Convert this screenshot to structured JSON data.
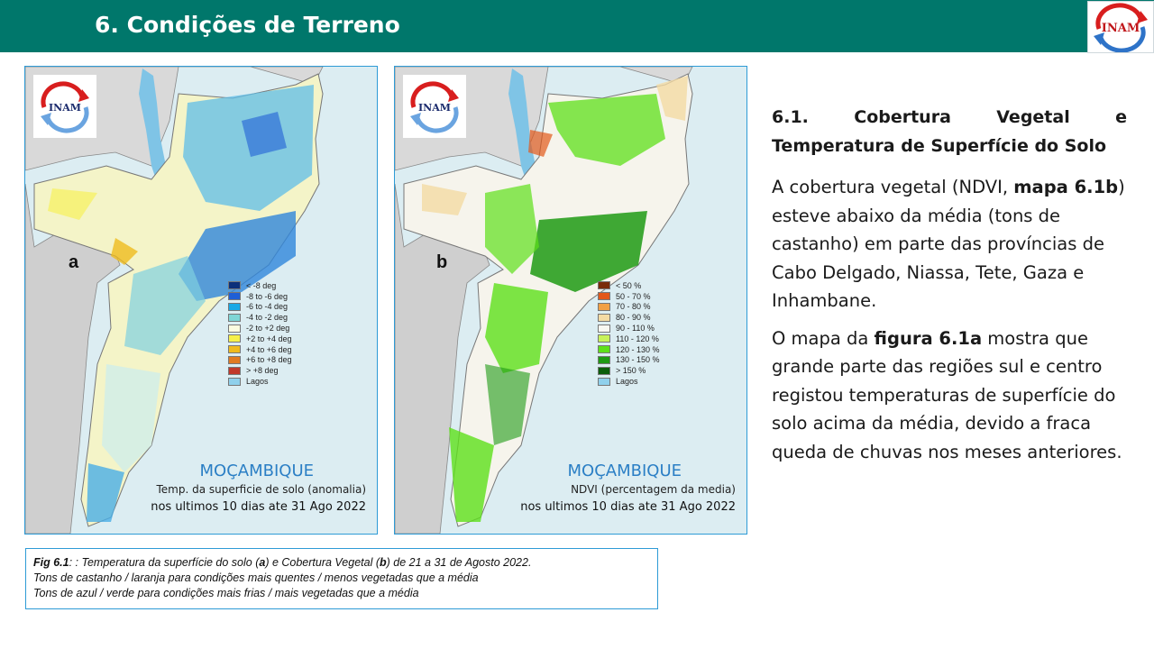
{
  "header": {
    "title": "6. Condições de Terreno",
    "logo_text": "INAM",
    "colors": {
      "bar": "#00776b"
    }
  },
  "maps": [
    {
      "letter": "a",
      "logo_text": "INAM",
      "country": "MOÇAMBIQUE",
      "subtitle": "Temp. da superficie de solo (anomalia)",
      "period": "nos ultimos 10 dias ate 31 Ago 2022",
      "legend": [
        {
          "label": "< -8 deg",
          "color": "#0b2f7a"
        },
        {
          "label": "-8 to -6 deg",
          "color": "#1f5fd6"
        },
        {
          "label": "-6 to -4 deg",
          "color": "#19a9e6"
        },
        {
          "label": "-4 to -2 deg",
          "color": "#7fd6d6"
        },
        {
          "label": "-2 to +2 deg",
          "color": "#fbfbe0"
        },
        {
          "label": "+2 to +4 deg",
          "color": "#f6f04a"
        },
        {
          "label": "+4 to +6 deg",
          "color": "#efbb1e"
        },
        {
          "label": "+6 to +8 deg",
          "color": "#e07a22"
        },
        {
          "label": "> +8 deg",
          "color": "#c1392b"
        },
        {
          "label": "Lagos",
          "color": "#8fd0ec"
        }
      ]
    },
    {
      "letter": "b",
      "logo_text": "INAM",
      "country": "MOÇAMBIQUE",
      "subtitle": "NDVI (percentagem da media)",
      "period": "nos ultimos 10 dias ate 31 Ago 2022",
      "legend": [
        {
          "label": "< 50 %",
          "color": "#7a2c0a"
        },
        {
          "label": "50 - 70 %",
          "color": "#e3581a"
        },
        {
          "label": "70 - 80 %",
          "color": "#f2a044"
        },
        {
          "label": "80 - 90 %",
          "color": "#f4dba4"
        },
        {
          "label": "90 - 110 %",
          "color": "#f8f8f2"
        },
        {
          "label": "110 - 120 %",
          "color": "#c8f25a"
        },
        {
          "label": "120 - 130 %",
          "color": "#5ee01a"
        },
        {
          "label": "130 - 150 %",
          "color": "#1e9a14"
        },
        {
          "label": "> 150 %",
          "color": "#0b5e0b"
        },
        {
          "label": "Lagos",
          "color": "#8fd0ec"
        }
      ]
    }
  ],
  "caption": {
    "line1_label": "Fig 6.1",
    "line1_a": ": : Temperatura da superfície do solo (",
    "line1_b": "a",
    "line1_c": ") e Cobertura  Vegetal (",
    "line1_d": "b",
    "line1_e": ") de 21 a 31 de Agosto 2022.",
    "line2": "Tons de castanho / laranja para condições mais quentes / menos vegetadas que a média",
    "line3": "Tons de azul  / verde para condições mais frias / mais vegetadas que a média"
  },
  "text": {
    "heading_w1": "6.1.",
    "heading_w2": "Cobertura",
    "heading_w3": "Vegetal",
    "heading_w4": "e",
    "heading_line2": "Temperatura de Superfície do Solo",
    "p1_a": "A cobertura vegetal (NDVI, ",
    "p1_b": "mapa 6.1b",
    "p1_c": ") esteve abaixo da média (tons de castanho)  em parte das províncias de Cabo Delgado, Niassa, Tete, Gaza e Inhambane.",
    "p2_a": "O mapa da ",
    "p2_b": "figura 6.1a",
    "p2_c": " mostra que grande parte das regiões sul e centro registou temperaturas de superfície do solo acima da média, devido a fraca queda de chuvas nos meses anteriores."
  }
}
